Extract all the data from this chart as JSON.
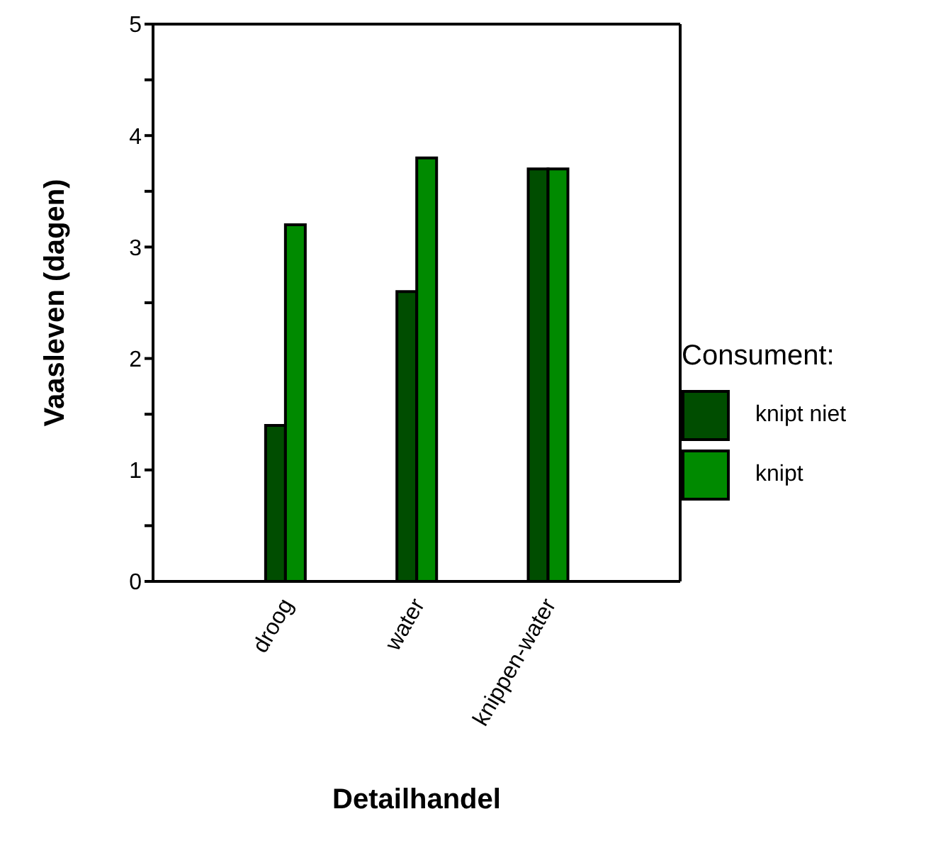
{
  "chart_data": {
    "type": "bar",
    "xlabel": "Detailhandel",
    "ylabel": "Vaasleven (dagen)",
    "legend_title": "Consument:",
    "categories": [
      "droog",
      "water",
      "knippen-water"
    ],
    "series": [
      {
        "name": "knipt niet",
        "color": "#004d00",
        "values": [
          1.4,
          2.6,
          3.7
        ]
      },
      {
        "name": "knipt",
        "color": "#008a00",
        "values": [
          3.2,
          3.8,
          3.7
        ]
      }
    ],
    "ylim": [
      0,
      5
    ],
    "yticks": [
      0,
      {
        "value": 0.5,
        "label": null
      },
      1,
      {
        "value": 1.5,
        "label": null
      },
      2,
      {
        "value": 2.5,
        "label": null
      },
      3,
      {
        "value": 3.5,
        "label": null
      },
      4,
      {
        "value": 4.5,
        "label": null
      },
      5
    ],
    "grid": false,
    "legend": "right"
  }
}
